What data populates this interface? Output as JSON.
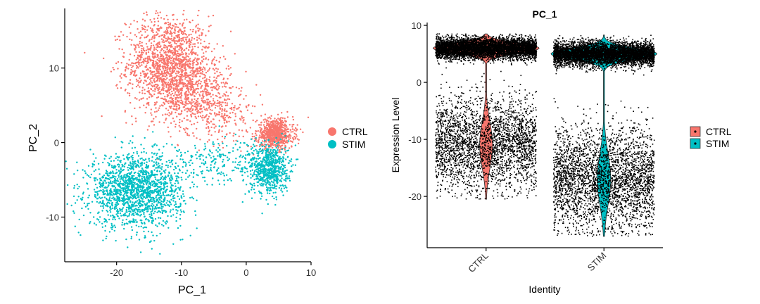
{
  "chart_data": [
    {
      "type": "scatter",
      "title": "",
      "xlabel": "PC_1",
      "ylabel": "PC_2",
      "xlim": [
        -28,
        10
      ],
      "ylim": [
        -16,
        18
      ],
      "x_ticks": [
        -20,
        -10,
        0,
        10
      ],
      "y_ticks": [
        -10,
        0,
        10
      ],
      "grid": false,
      "legend": {
        "position": "right",
        "entries": [
          {
            "name": "CTRL",
            "color": "#F8766D"
          },
          {
            "name": "STIM",
            "color": "#00BFC4"
          }
        ]
      },
      "series": [
        {
          "name": "CTRL",
          "color": "#F8766D",
          "clusters": [
            {
              "center": [
                -12,
                10.5
              ],
              "spread": [
                3.2,
                3.3
              ],
              "count": 1500
            },
            {
              "center": [
                -7.5,
                6.5
              ],
              "spread": [
                2.6,
                2.6
              ],
              "count": 500
            },
            {
              "center": [
                4.5,
                1.2
              ],
              "spread": [
                1.4,
                1.0
              ],
              "count": 750
            },
            {
              "center": [
                -3,
                3.5
              ],
              "spread": [
                2.5,
                1.5
              ],
              "count": 150
            }
          ]
        },
        {
          "name": "STIM",
          "color": "#00BFC4",
          "clusters": [
            {
              "center": [
                -17,
                -6.5
              ],
              "spread": [
                3.6,
                2.4
              ],
              "count": 1700
            },
            {
              "center": [
                3.5,
                -3.5
              ],
              "spread": [
                1.5,
                1.7
              ],
              "count": 700
            },
            {
              "center": [
                -5,
                -2.5
              ],
              "spread": [
                4.5,
                1.6
              ],
              "count": 220
            }
          ]
        }
      ]
    },
    {
      "type": "violin",
      "title": "PC_1",
      "xlabel": "Identity",
      "ylabel": "Expression Level",
      "categories": [
        "CTRL",
        "STIM"
      ],
      "ylim": [
        -29,
        10.5
      ],
      "y_ticks": [
        -20,
        -10,
        0,
        10
      ],
      "grid": false,
      "legend": {
        "position": "right",
        "entries": [
          {
            "name": "CTRL",
            "color": "#F8766D"
          },
          {
            "name": "STIM",
            "color": "#00BFC4"
          }
        ]
      },
      "series": [
        {
          "name": "CTRL",
          "color": "#F8766D",
          "y_max": 8.5,
          "y_min": -20.5,
          "mode_y": 6,
          "density_modes": [
            {
              "center": 6.0,
              "sd": 0.9,
              "count": 5200
            },
            {
              "center": -11.0,
              "sd": 4.0,
              "count": 2800
            }
          ]
        },
        {
          "name": "STIM",
          "color": "#00BFC4",
          "y_max": 8.3,
          "y_min": -27.0,
          "mode_y": 5,
          "density_modes": [
            {
              "center": 5.0,
              "sd": 1.0,
              "count": 5200
            },
            {
              "center": -17.0,
              "sd": 4.5,
              "count": 3000
            }
          ]
        }
      ]
    }
  ]
}
